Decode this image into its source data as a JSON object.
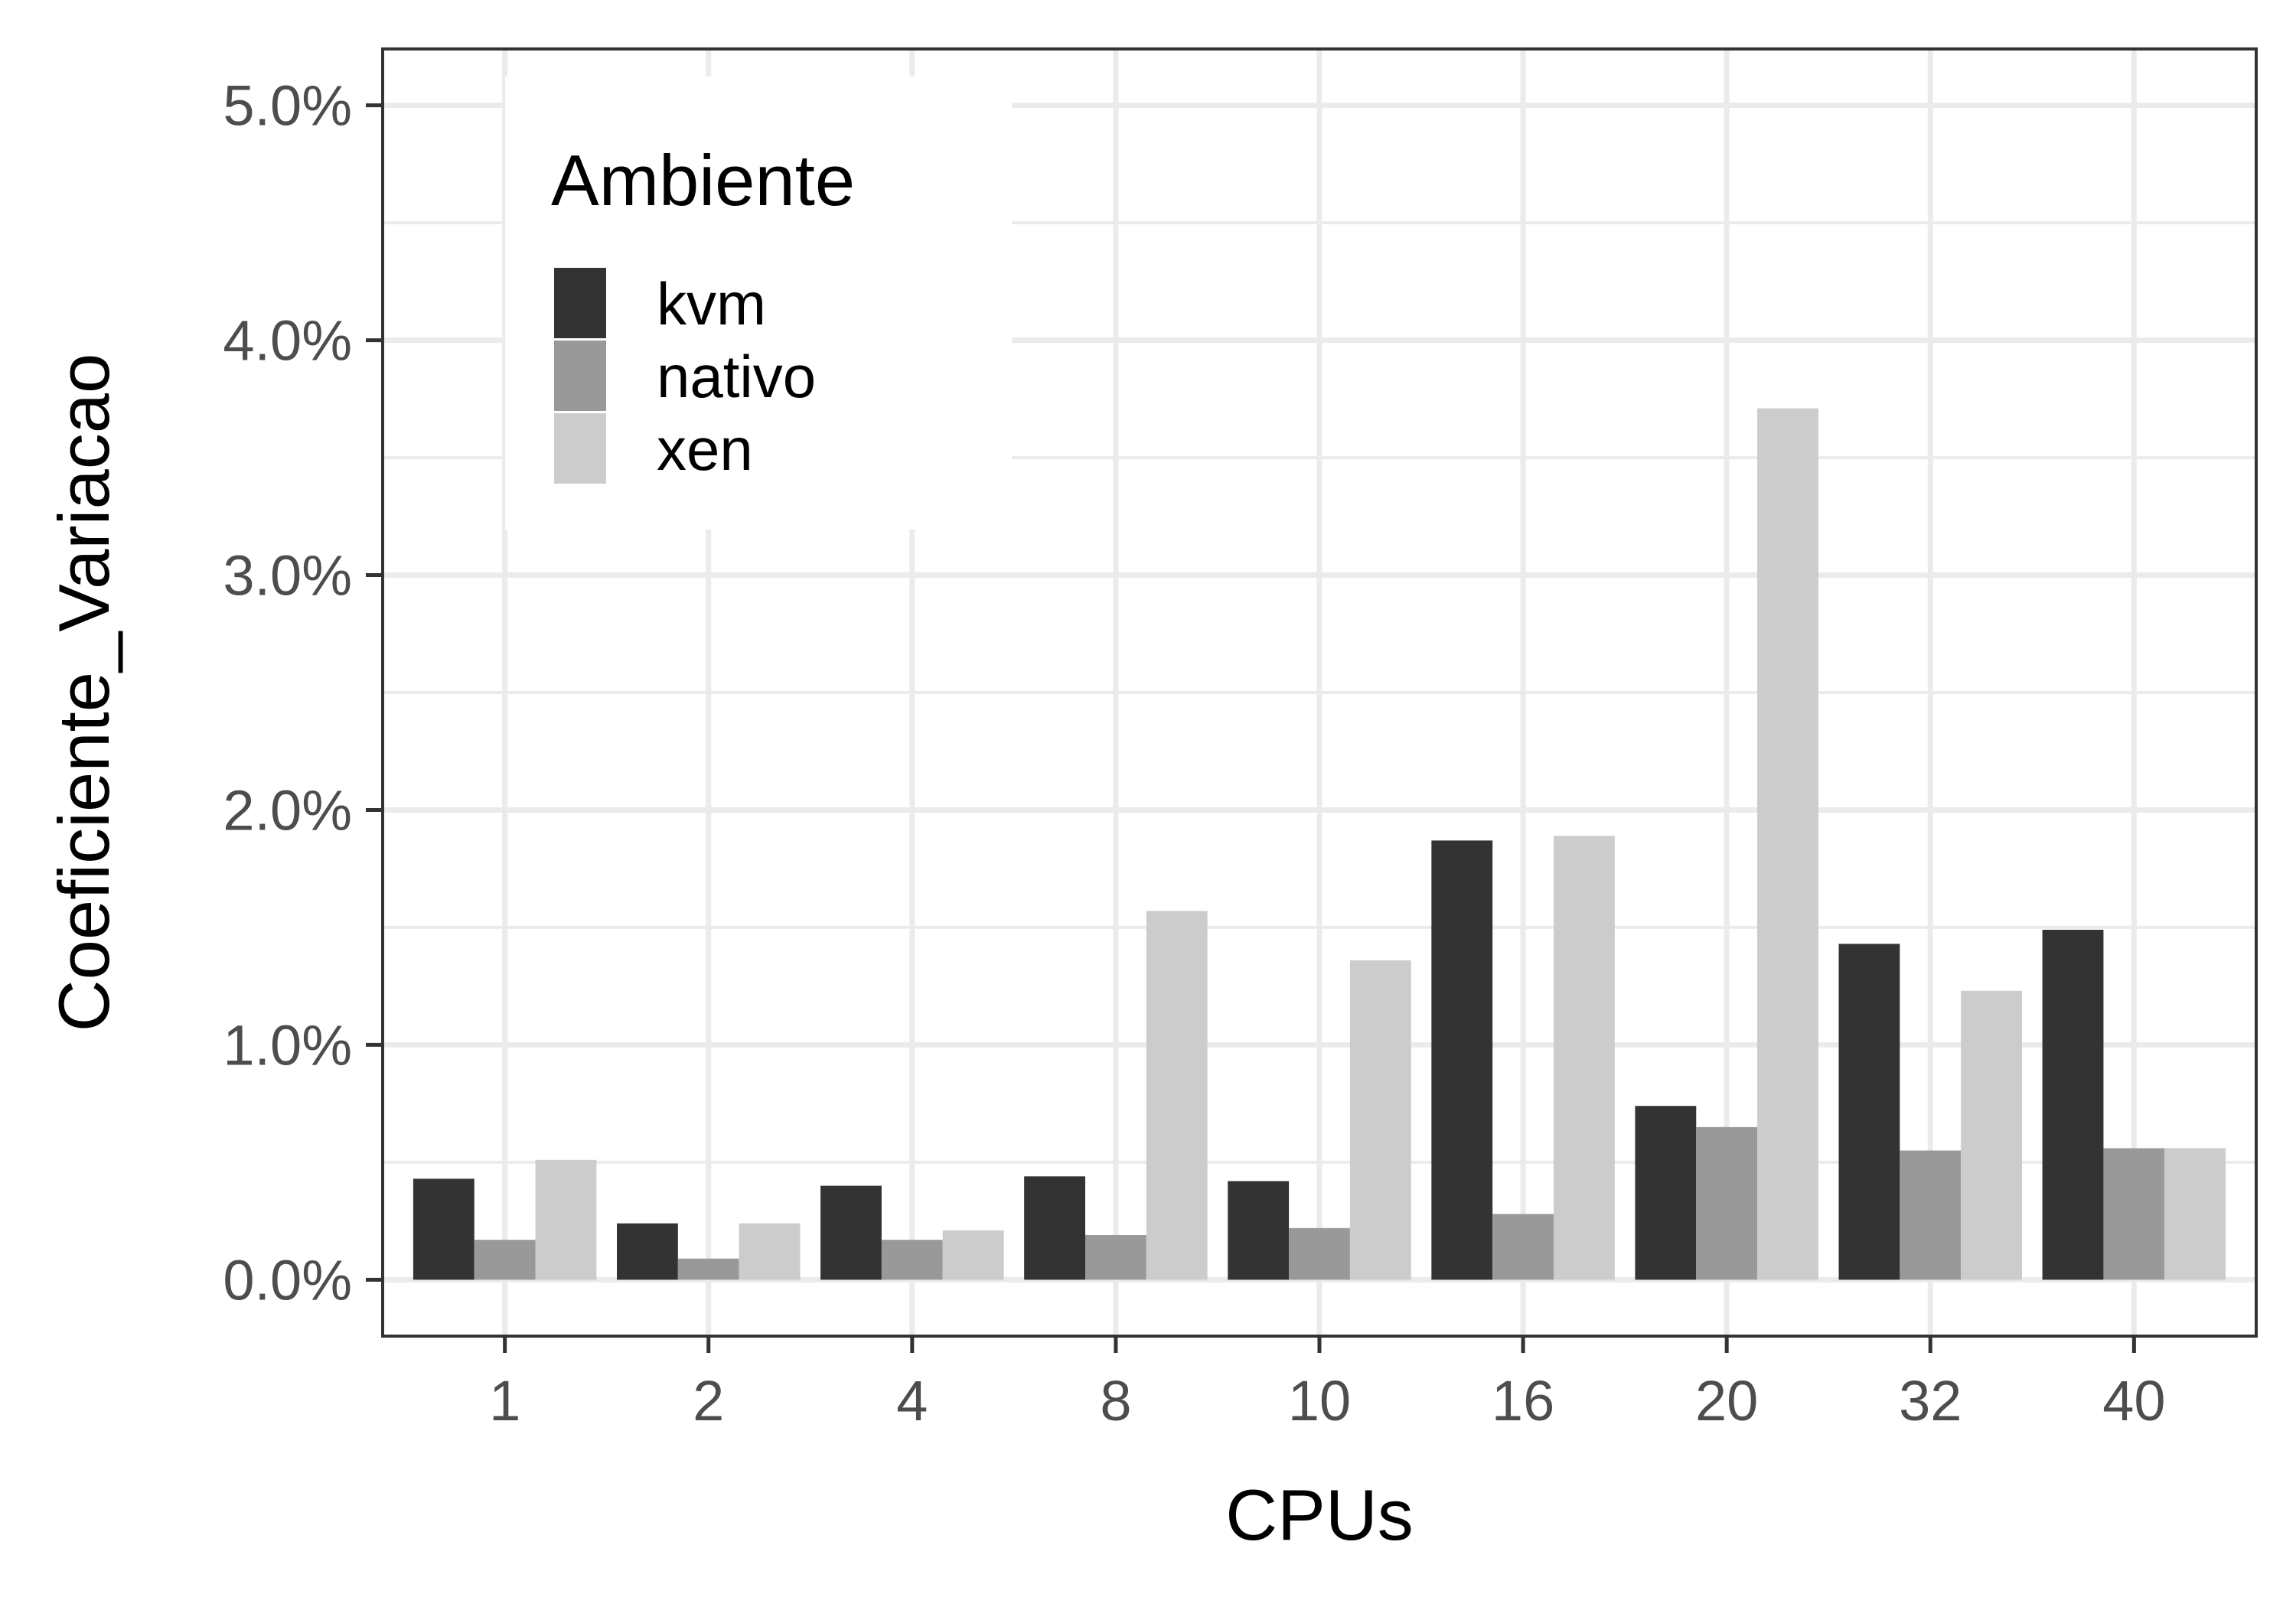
{
  "chart_data": {
    "type": "bar",
    "title": "",
    "xlabel": "CPUs",
    "ylabel": "Coeficiente_Variacao",
    "categories": [
      "1",
      "2",
      "4",
      "8",
      "10",
      "16",
      "20",
      "32",
      "40"
    ],
    "series": [
      {
        "name": "kvm",
        "color": "#333333",
        "values": [
          0.43,
          0.24,
          0.4,
          0.44,
          0.42,
          1.87,
          0.74,
          1.43,
          1.49
        ]
      },
      {
        "name": "nativo",
        "color": "#999999",
        "values": [
          0.17,
          0.09,
          0.17,
          0.19,
          0.22,
          0.28,
          0.65,
          0.55,
          0.56
        ]
      },
      {
        "name": "xen",
        "color": "#cccccc",
        "values": [
          0.51,
          0.24,
          0.21,
          1.57,
          1.36,
          1.89,
          3.71,
          1.23,
          0.56
        ]
      }
    ],
    "ylim": [
      -0.24,
      5.24
    ],
    "yticks": [
      0,
      1,
      2,
      3,
      4,
      5
    ],
    "ytick_labels": [
      "0.0%",
      "1.0%",
      "2.0%",
      "3.0%",
      "4.0%",
      "5.0%"
    ],
    "legend": {
      "title": "Ambiente",
      "position": "top-left",
      "items": [
        "kvm",
        "nativo",
        "xen"
      ]
    },
    "grid": true
  }
}
